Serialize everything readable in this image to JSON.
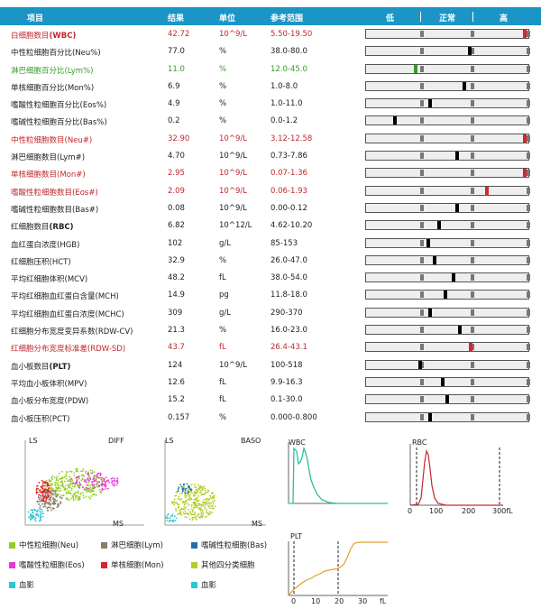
{
  "header": {
    "item": "项目",
    "result": "结果",
    "unit": "单位",
    "ref": "参考范围",
    "low": "低",
    "normal": "正常",
    "high": "高"
  },
  "rows": [
    {
      "name": "白细胞数目",
      "abbr": "(WBC)",
      "bold": true,
      "result": "42.72",
      "unit": "10^9/L",
      "ref": "5.50-19.50",
      "status": "high",
      "level": 0.99
    },
    {
      "name": "中性粒细胞百分比(Neu%)",
      "abbr": "",
      "bold": false,
      "result": "77.0",
      "unit": "%",
      "ref": "38.0-80.0",
      "status": "normal",
      "level": 0.64
    },
    {
      "name": "淋巴细胞百分比(Lym%)",
      "abbr": "",
      "bold": false,
      "result": "11.0",
      "unit": "%",
      "ref": "12.0-45.0",
      "status": "low",
      "level": 0.3
    },
    {
      "name": "单核细胞百分比(Mon%)",
      "abbr": "",
      "bold": false,
      "result": "6.9",
      "unit": "%",
      "ref": "1.0-8.0",
      "status": "normal",
      "level": 0.61
    },
    {
      "name": "嗜酸性粒细胞百分比(Eos%)",
      "abbr": "",
      "bold": false,
      "result": "4.9",
      "unit": "%",
      "ref": "1.0-11.0",
      "status": "normal",
      "level": 0.39
    },
    {
      "name": "嗜碱性粒细胞百分比(Bas%)",
      "abbr": "",
      "bold": false,
      "result": "0.2",
      "unit": "%",
      "ref": "0.0-1.2",
      "status": "normal",
      "level": 0.17
    },
    {
      "name": "中性粒细胞数目(Neu#)",
      "abbr": "",
      "bold": false,
      "result": "32.90",
      "unit": "10^9/L",
      "ref": "3.12-12.58",
      "status": "high",
      "level": 0.99
    },
    {
      "name": "淋巴细胞数目(Lym#)",
      "abbr": "",
      "bold": false,
      "result": "4.70",
      "unit": "10^9/L",
      "ref": "0.73-7.86",
      "status": "normal",
      "level": 0.56
    },
    {
      "name": "单核细胞数目(Mon#)",
      "abbr": "",
      "bold": false,
      "result": "2.95",
      "unit": "10^9/L",
      "ref": "0.07-1.36",
      "status": "high",
      "level": 0.99
    },
    {
      "name": "嗜酸性粒细胞数目(Eos#)",
      "abbr": "",
      "bold": false,
      "result": "2.09",
      "unit": "10^9/L",
      "ref": "0.06-1.93",
      "status": "high",
      "level": 0.75
    },
    {
      "name": "嗜碱性粒细胞数目(Bas#)",
      "abbr": "",
      "bold": false,
      "result": "0.08",
      "unit": "10^9/L",
      "ref": "0.00-0.12",
      "status": "normal",
      "level": 0.56
    },
    {
      "name": "红细胞数目",
      "abbr": "(RBC)",
      "bold": true,
      "result": "6.82",
      "unit": "10^12/L",
      "ref": "4.62-10.20",
      "status": "normal",
      "level": 0.45
    },
    {
      "name": "血红蛋白浓度(HGB)",
      "abbr": "",
      "bold": false,
      "result": "102",
      "unit": "g/L",
      "ref": "85-153",
      "status": "normal",
      "level": 0.38
    },
    {
      "name": "红细胞压积(HCT)",
      "abbr": "",
      "bold": false,
      "result": "32.9",
      "unit": "%",
      "ref": "26.0-47.0",
      "status": "normal",
      "level": 0.42
    },
    {
      "name": "平均红细胞体积(MCV)",
      "abbr": "",
      "bold": false,
      "result": "48.2",
      "unit": "fL",
      "ref": "38.0-54.0",
      "status": "normal",
      "level": 0.54
    },
    {
      "name": "平均红细胞血红蛋白含量(MCH)",
      "abbr": "",
      "bold": false,
      "result": "14.9",
      "unit": "pg",
      "ref": "11.8-18.0",
      "status": "normal",
      "level": 0.49
    },
    {
      "name": "平均红细胞血红蛋白浓度(MCHC)",
      "abbr": "",
      "bold": false,
      "result": "309",
      "unit": "g/L",
      "ref": "290-370",
      "status": "normal",
      "level": 0.39
    },
    {
      "name": "红细胞分布宽度变异系数(RDW-CV)",
      "abbr": "",
      "bold": false,
      "result": "21.3",
      "unit": "%",
      "ref": "16.0-23.0",
      "status": "normal",
      "level": 0.58
    },
    {
      "name": "红细胞分布宽度标准差(RDW-SD)",
      "abbr": "",
      "bold": false,
      "result": "43.7",
      "unit": "fL",
      "ref": "26.4-43.1",
      "status": "high",
      "level": 0.65
    },
    {
      "name": "血小板数目",
      "abbr": "(PLT)",
      "bold": true,
      "result": "124",
      "unit": "10^9/L",
      "ref": "100-518",
      "status": "normal",
      "level": 0.33
    },
    {
      "name": "平均血小板体积(MPV)",
      "abbr": "",
      "bold": false,
      "result": "12.6",
      "unit": "fL",
      "ref": "9.9-16.3",
      "status": "normal",
      "level": 0.47
    },
    {
      "name": "血小板分布宽度(PDW)",
      "abbr": "",
      "bold": false,
      "result": "15.2",
      "unit": "fL",
      "ref": "0.1-30.0",
      "status": "normal",
      "level": 0.5
    },
    {
      "name": "血小板压积(PCT)",
      "abbr": "",
      "bold": false,
      "result": "0.157",
      "unit": "%",
      "ref": "0.000-0.800",
      "status": "normal",
      "level": 0.39
    }
  ],
  "diff": {
    "ls": "LS",
    "title": "DIFF",
    "ms": "MS"
  },
  "baso": {
    "ls": "LS",
    "title": "BASO",
    "ms": "MS"
  },
  "wbc_hist": {
    "title": "WBC"
  },
  "rbc_hist": {
    "title": "RBC",
    "ticks": [
      "0",
      "100",
      "200",
      "300fL"
    ]
  },
  "plt_hist": {
    "title": "PLT",
    "ticks": [
      "0",
      "10",
      "20",
      "30",
      "fL"
    ]
  },
  "legend": [
    {
      "label": "中性粒细胞(Neu)",
      "color": "#8fcf2a"
    },
    {
      "label": "淋巴细胞(Lym)",
      "color": "#8a7d6a"
    },
    {
      "label": "嗜碱性粒细胞(Bas)",
      "color": "#1f6fb0"
    },
    {
      "label": "嗜酸性粒细胞(Eos)",
      "color": "#e83ad6"
    },
    {
      "label": "单核细胞(Mon)",
      "color": "#d7262c"
    },
    {
      "label": "其他四分类细胞",
      "color": "#b5cc2a"
    },
    {
      "label": "血影",
      "color": "#2fc6d0"
    },
    {
      "label": "血影",
      "color": "#2fc6d0"
    }
  ],
  "colors": {
    "header": "#1b95c6",
    "high": "#c0282d",
    "low": "#3a9a2c"
  }
}
